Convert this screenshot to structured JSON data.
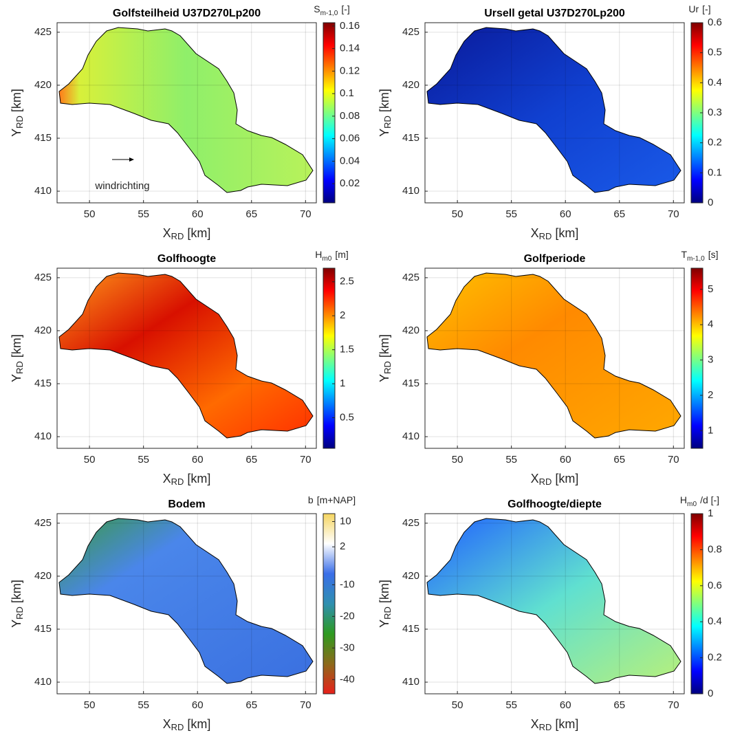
{
  "chart_data": [
    {
      "type": "map",
      "title": "Golfsteilheid U37D270Lp200",
      "xlabel": {
        "text": "X",
        "sub": "RD",
        "unit": "[km]"
      },
      "ylabel": {
        "text": "Y",
        "sub": "RD",
        "unit": "[km]"
      },
      "xlim": [
        47.0,
        71.0
      ],
      "ylim": [
        408.9,
        425.9
      ],
      "xticks": [
        50,
        55,
        60,
        65,
        70
      ],
      "yticks": [
        410,
        415,
        420,
        425
      ],
      "grid": true,
      "colorbar_label": {
        "text": "S",
        "sub": "m-1,0",
        "unit": "[-]"
      },
      "clim": [
        0.003,
        0.163
      ],
      "cticks": [
        0.02,
        0.04,
        0.06,
        0.08,
        0.1,
        0.12,
        0.14,
        0.16
      ],
      "colors": [
        "#00007f",
        "#0000ff",
        "#007fff",
        "#00ffff",
        "#7fff7f",
        "#ffff00",
        "#ff7f00",
        "#ff0000",
        "#7f0000"
      ],
      "annotation": "windrichting"
    },
    {
      "type": "map",
      "title": "Ursell getal U37D270Lp200",
      "xlabel": {
        "text": "X",
        "sub": "RD",
        "unit": "[km]"
      },
      "ylabel": {
        "text": "Y",
        "sub": "RD",
        "unit": "[km]"
      },
      "xlim": [
        47.0,
        71.0
      ],
      "ylim": [
        408.9,
        425.9
      ],
      "xticks": [
        50,
        55,
        60,
        65,
        70
      ],
      "yticks": [
        410,
        415,
        420,
        425
      ],
      "grid": true,
      "colorbar_label": {
        "text": "Ur",
        "unit": "[-]"
      },
      "clim": [
        0,
        0.6
      ],
      "cticks": [
        0,
        0.1,
        0.2,
        0.3,
        0.4,
        0.5,
        0.6
      ],
      "colors": [
        "#00007f",
        "#0000ff",
        "#007fff",
        "#00ffff",
        "#7fff7f",
        "#ffff00",
        "#ff7f00",
        "#ff0000",
        "#7f0000"
      ]
    },
    {
      "type": "map",
      "title": "Golfhoogte",
      "xlabel": {
        "text": "X",
        "sub": "RD",
        "unit": "[km]"
      },
      "ylabel": {
        "text": "Y",
        "sub": "RD",
        "unit": "[km]"
      },
      "xlim": [
        47.0,
        71.0
      ],
      "ylim": [
        408.9,
        425.9
      ],
      "xticks": [
        50,
        55,
        60,
        65,
        70
      ],
      "yticks": [
        410,
        415,
        420,
        425
      ],
      "grid": true,
      "colorbar_label": {
        "text": "H",
        "sub": "m0",
        "unit": "[m]"
      },
      "clim": [
        0.05,
        2.7
      ],
      "cticks": [
        0.5,
        1,
        1.5,
        2,
        2.5
      ],
      "colors": [
        "#00007f",
        "#0000ff",
        "#007fff",
        "#00ffff",
        "#7fff7f",
        "#ffff00",
        "#ff7f00",
        "#ff0000",
        "#7f0000"
      ]
    },
    {
      "type": "map",
      "title": "Golfperiode",
      "xlabel": {
        "text": "X",
        "sub": "RD",
        "unit": "[km]"
      },
      "ylabel": {
        "text": "Y",
        "sub": "RD",
        "unit": "[km]"
      },
      "xlim": [
        47.0,
        71.0
      ],
      "ylim": [
        408.9,
        425.9
      ],
      "xticks": [
        50,
        55,
        60,
        65,
        70
      ],
      "yticks": [
        410,
        415,
        420,
        425
      ],
      "grid": true,
      "colorbar_label": {
        "text": "T",
        "sub": "m-1,0",
        "unit": "[s]"
      },
      "clim": [
        0.5,
        5.6
      ],
      "cticks": [
        1,
        2,
        3,
        4,
        5
      ],
      "colors": [
        "#00007f",
        "#0000ff",
        "#007fff",
        "#00ffff",
        "#7fff7f",
        "#ffff00",
        "#ff7f00",
        "#ff0000",
        "#7f0000"
      ]
    },
    {
      "type": "map",
      "title": "Bodem",
      "xlabel": {
        "text": "X",
        "sub": "RD",
        "unit": "[km]"
      },
      "ylabel": {
        "text": "Y",
        "sub": "RD",
        "unit": "[km]"
      },
      "xlim": [
        47.0,
        71.0
      ],
      "ylim": [
        408.9,
        425.9
      ],
      "xticks": [
        50,
        55,
        60,
        65,
        70
      ],
      "yticks": [
        410,
        415,
        420,
        425
      ],
      "grid": true,
      "colorbar_label": {
        "text": "b",
        "unit": "[m+NAP]"
      },
      "clim": [
        -44.5,
        12.5
      ],
      "cticks": [
        10,
        2,
        -10,
        -20,
        -30,
        -40
      ],
      "colors": [
        "#e8201a",
        "#8c6a1a",
        "#2e9a20",
        "#2f8fb0",
        "#3a6ee8",
        "#ffffff",
        "#f5d560"
      ]
    },
    {
      "type": "map",
      "title": "Golfhoogte/diepte",
      "xlabel": {
        "text": "X",
        "sub": "RD",
        "unit": "[km]"
      },
      "ylabel": {
        "text": "Y",
        "sub": "RD",
        "unit": "[km]"
      },
      "xlim": [
        47.0,
        71.0
      ],
      "ylim": [
        408.9,
        425.9
      ],
      "xticks": [
        50,
        55,
        60,
        65,
        70
      ],
      "yticks": [
        410,
        415,
        420,
        425
      ],
      "grid": true,
      "colorbar_label": {
        "text": "H",
        "sub": "m0",
        "unit": "/d [-]"
      },
      "clim": [
        0,
        1
      ],
      "cticks": [
        0,
        0.2,
        0.4,
        0.6,
        0.8,
        1
      ],
      "colors": [
        "#00007f",
        "#0000ff",
        "#007fff",
        "#00ffff",
        "#7fff7f",
        "#ffff00",
        "#ff7f00",
        "#ff0000",
        "#7f0000"
      ]
    }
  ]
}
